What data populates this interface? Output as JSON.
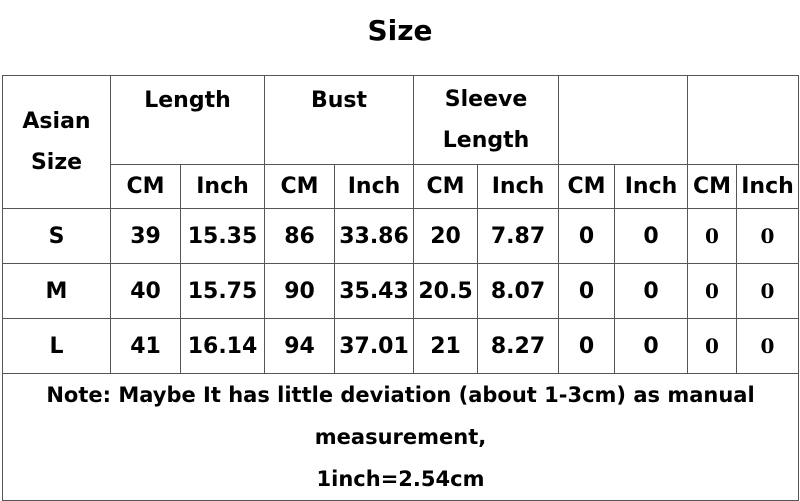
{
  "title": "Size",
  "header": {
    "size_col": [
      "Asian",
      "Size"
    ],
    "groups": [
      {
        "label": [
          "Length"
        ]
      },
      {
        "label": [
          "Bust"
        ]
      },
      {
        "label": [
          "Sleeve",
          "Length"
        ]
      },
      {
        "label": [
          ""
        ]
      },
      {
        "label": [
          ""
        ]
      }
    ],
    "units": [
      "CM",
      "Inch",
      "CM",
      "Inch",
      "CM",
      "Inch",
      "CM",
      "Inch",
      "CM",
      "Inch"
    ]
  },
  "rows": [
    {
      "size": "S",
      "values": [
        "39",
        "15.35",
        "86",
        "33.86",
        "20",
        "7.87",
        "0",
        "0",
        "0",
        "0"
      ]
    },
    {
      "size": "M",
      "values": [
        "40",
        "15.75",
        "90",
        "35.43",
        "20.5",
        "8.07",
        "0",
        "0",
        "0",
        "0"
      ]
    },
    {
      "size": "L",
      "values": [
        "41",
        "16.14",
        "94",
        "37.01",
        "21",
        "8.27",
        "0",
        "0",
        "0",
        "0"
      ]
    }
  ],
  "note": {
    "line1": "Note: Maybe It has little deviation (about 1-3cm) as manual measurement,",
    "line2": "1inch=2.54cm"
  }
}
